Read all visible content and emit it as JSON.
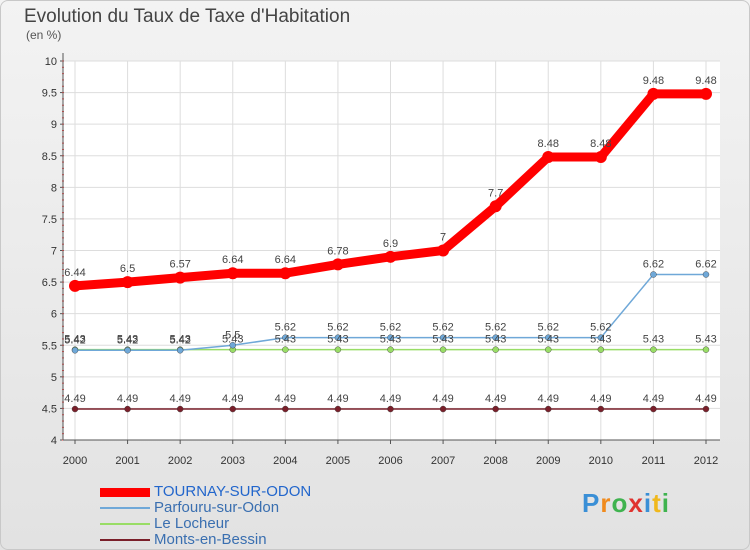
{
  "chart_data": {
    "type": "line",
    "title": "Evolution du Taux de Taxe d'Habitation",
    "unit_label": "(en %)",
    "x": [
      "2000",
      "2001",
      "2002",
      "2003",
      "2004",
      "2005",
      "2006",
      "2007",
      "2008",
      "2009",
      "2010",
      "2011",
      "2012"
    ],
    "ylim": [
      4,
      10
    ],
    "yticks": [
      "4",
      "4.5",
      "5",
      "5.5",
      "6",
      "6.5",
      "7",
      "7.5",
      "8",
      "8.5",
      "9",
      "9.5",
      "10"
    ],
    "grid": true,
    "legend_position": "bottom-left",
    "series": [
      {
        "name": "TOURNAY-SUR-ODON",
        "color": "#ff0000",
        "values": [
          6.44,
          6.5,
          6.57,
          6.64,
          6.64,
          6.78,
          6.9,
          7,
          7.7,
          8.48,
          8.48,
          9.48,
          9.48
        ],
        "labels": [
          "6.44",
          "6.5",
          "6.57",
          "6.64",
          "6.64",
          "6.78",
          "6.9",
          "7",
          "7.7",
          "8.48",
          "8.48",
          "9.48",
          "9.48"
        ]
      },
      {
        "name": "Parfouru-sur-Odon",
        "color": "#6fa8d8",
        "values": [
          5.42,
          5.42,
          5.42,
          5.5,
          5.62,
          5.62,
          5.62,
          5.62,
          5.62,
          5.62,
          5.62,
          6.62,
          6.62
        ],
        "labels": [
          "5.42",
          "5.42",
          "5.42",
          "5.5",
          "5.62",
          "5.62",
          "5.62",
          "5.62",
          "5.62",
          "5.62",
          "5.62",
          "6.62",
          "6.62"
        ]
      },
      {
        "name": "Le Locheur",
        "color": "#99dd66",
        "values": [
          5.43,
          5.43,
          5.43,
          5.43,
          5.43,
          5.43,
          5.43,
          5.43,
          5.43,
          5.43,
          5.43,
          5.43,
          5.43
        ],
        "labels": [
          "5.43",
          "5.43",
          "5.43",
          "5.43",
          "5.43",
          "5.43",
          "5.43",
          "5.43",
          "5.43",
          "5.43",
          "5.43",
          "5.43",
          "5.43"
        ]
      },
      {
        "name": "Monts-en-Bessin",
        "color": "#7a1f2a",
        "values": [
          4.49,
          4.49,
          4.49,
          4.49,
          4.49,
          4.49,
          4.49,
          4.49,
          4.49,
          4.49,
          4.49,
          4.49,
          4.49
        ],
        "labels": [
          "4.49",
          "4.49",
          "4.49",
          "4.49",
          "4.49",
          "4.49",
          "4.49",
          "4.49",
          "4.49",
          "4.49",
          "4.49",
          "4.49",
          "4.49"
        ]
      }
    ]
  },
  "logo": {
    "letters": [
      "P",
      "r",
      "o",
      "x",
      "i",
      "t",
      "i"
    ],
    "colors": [
      "#3a8fd6",
      "#f08a1c",
      "#3fb34f",
      "#e0332f",
      "#3a8fd6",
      "#f0b81c",
      "#3fb34f"
    ]
  }
}
